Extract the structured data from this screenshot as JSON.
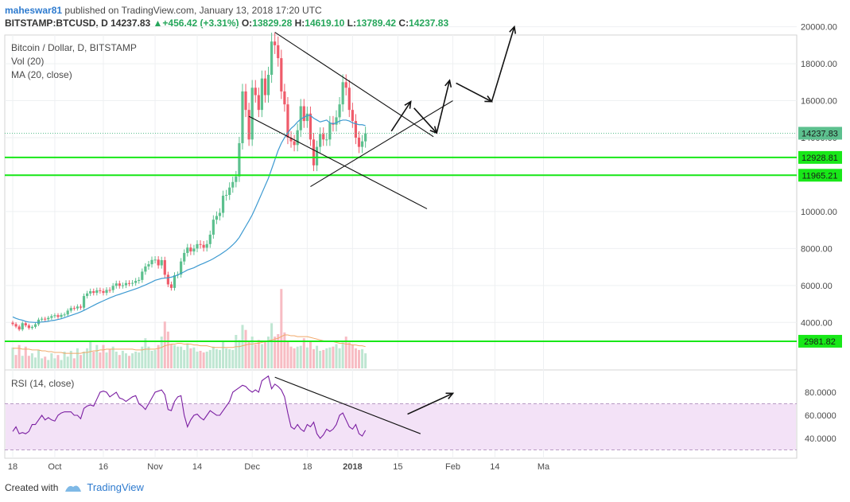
{
  "header": {
    "author": "maheswar81",
    "published_text": "published on TradingView.com, January 13, 2018 17:20 UTC"
  },
  "ticker": {
    "symbol": "BITSTAMP:BTCUSD, D",
    "last": "14237.83",
    "change": "+456.42 (+3.31%)",
    "open_label": "O:",
    "open": "13829.28",
    "high_label": "H:",
    "high": "14619.10",
    "low_label": "L:",
    "low": "13789.42",
    "close_label": "C:",
    "close": "14237.83"
  },
  "legend": {
    "title": "Bitcoin / Dollar, D, BITSTAMP",
    "vol": "Vol (20)",
    "ma": "MA (20, close)",
    "rsi": "RSI (14, close)"
  },
  "footer": {
    "created_with": "Created with",
    "brand": "TradingView"
  },
  "colors": {
    "up": "#5cc08e",
    "down": "#ef5b6a",
    "ma": "#3d9ad1",
    "hline": "#18e818",
    "rsi": "#7b1fa2",
    "rsi_band": "#f3e2f7",
    "text": "#4a4a4a"
  },
  "chart_data": {
    "type": "candlestick",
    "symbol": "BTCUSD",
    "exchange": "BITSTAMP",
    "interval": "D",
    "y_axis": {
      "ticks": [
        "20000.00",
        "18000.00",
        "16000.00",
        "14000.00",
        "12000.00",
        "10000.00",
        "8000.00",
        "6000.00",
        "4000.00"
      ],
      "tick_values": [
        20000,
        18000,
        16000,
        14000,
        12000,
        10000,
        8000,
        6000,
        4000
      ],
      "ylim": [
        3000,
        20300
      ]
    },
    "x_axis": {
      "ticks": [
        "18",
        "Oct",
        "16",
        "Nov",
        "14",
        "Dec",
        "18",
        "2018",
        "15",
        "Feb",
        "14",
        "Ma"
      ],
      "start": "2017-09-18",
      "end": "2018-03-05"
    },
    "price_labels": [
      {
        "value": 14237.83,
        "text": "14237.83"
      },
      {
        "value": 12928.81,
        "text": "12928.81"
      },
      {
        "value": 11965.21,
        "text": "11965.21"
      },
      {
        "value": 2981.82,
        "text": "2981.82"
      }
    ],
    "horizontal_lines": [
      12928.81,
      11965.21,
      2981.82
    ],
    "closes": [
      3910,
      3780,
      3620,
      3960,
      3840,
      3700,
      3760,
      3900,
      4150,
      4200,
      4170,
      4250,
      4340,
      4390,
      4300,
      4410,
      4430,
      4640,
      4780,
      4760,
      4860,
      4800,
      5430,
      5570,
      5690,
      5600,
      5740,
      5700,
      5600,
      5760,
      5750,
      5980,
      6110,
      5980,
      6010,
      6130,
      6110,
      6140,
      6250,
      6300,
      6750,
      7030,
      7150,
      7380,
      7400,
      7090,
      7370,
      6580,
      6060,
      5870,
      6550,
      6590,
      7300,
      7760,
      8050,
      7840,
      8000,
      8240,
      8200,
      8040,
      8240,
      8750,
      9560,
      9760,
      9930,
      10860,
      10900,
      11300,
      11600,
      11900,
      13700,
      16500,
      15500,
      13900,
      16700,
      16300,
      15500,
      17200,
      16300,
      17400,
      19200,
      19000,
      18300,
      16500,
      15800,
      14000,
      13800,
      13600,
      14400,
      15700,
      14900,
      15300,
      13900,
      12500,
      13500,
      14200,
      13900,
      13900,
      14800,
      14700,
      15100,
      15800,
      17000,
      16700,
      15500,
      14900,
      14000,
      13500,
      13800,
      14237
    ],
    "ma20": [
      4300,
      4220,
      4160,
      4120,
      4060,
      4020,
      4010,
      4000,
      4010,
      4020,
      4040,
      4060,
      4100,
      4120,
      4160,
      4200,
      4260,
      4320,
      4380,
      4440,
      4500,
      4570,
      4650,
      4740,
      4830,
      4920,
      5010,
      5090,
      5170,
      5250,
      5330,
      5400,
      5470,
      5520,
      5580,
      5640,
      5700,
      5760,
      5820,
      5880,
      5960,
      6030,
      6110,
      6190,
      6280,
      6330,
      6380,
      6400,
      6420,
      6450,
      6500,
      6570,
      6660,
      6740,
      6840,
      6900,
      6960,
      7050,
      7130,
      7200,
      7280,
      7360,
      7450,
      7560,
      7660,
      7780,
      7900,
      8040,
      8200,
      8380,
      8600,
      8900,
      9200,
      9500,
      9820,
      10200,
      10600,
      11000,
      11400,
      11800,
      12300,
      12800,
      13300,
      13700,
      14000,
      14250,
      14500,
      14650,
      14850,
      15000,
      15100,
      15200,
      15200,
      15050,
      14950,
      14850,
      14900,
      14950,
      14800,
      14750,
      14800,
      14900,
      14950,
      14950,
      14900,
      14800,
      14750,
      14700,
      14700,
      14650
    ],
    "rsi": {
      "name": "RSI (14, close)",
      "ticks": [
        "80.0000",
        "60.0000",
        "40.0000"
      ],
      "tick_values": [
        80,
        60,
        40
      ],
      "band": [
        30,
        70
      ],
      "ylim": [
        25,
        100
      ],
      "values": [
        46,
        50,
        44,
        45,
        44,
        46,
        52,
        52,
        56,
        60,
        56,
        58,
        56,
        55,
        60,
        62,
        63,
        63,
        63,
        60,
        60,
        57,
        66,
        68,
        69,
        68,
        74,
        80,
        81,
        80,
        76,
        78,
        80,
        75,
        74,
        72,
        74,
        76,
        77,
        70,
        68,
        65,
        70,
        75,
        80,
        81,
        82,
        78,
        65,
        64,
        72,
        76,
        77,
        60,
        50,
        56,
        60,
        61,
        58,
        56,
        60,
        64,
        62,
        60,
        60,
        64,
        68,
        72,
        80,
        82,
        84,
        86,
        85,
        82,
        80,
        82,
        80,
        90,
        92,
        94,
        83,
        87,
        85,
        82,
        76,
        62,
        50,
        48,
        52,
        48,
        46,
        52,
        50,
        54,
        44,
        40,
        43,
        48,
        46,
        48,
        52,
        60,
        62,
        56,
        50,
        48,
        52,
        44,
        42,
        47
      ]
    },
    "volume": {
      "name": "Vol (20)",
      "values": [
        2.5,
        1.6,
        2.8,
        1.5,
        2.6,
        1.5,
        1.8,
        1.3,
        2.2,
        1.2,
        1.4,
        1.0,
        1.8,
        1.2,
        1.6,
        1.0,
        2.0,
        1.4,
        2.1,
        1.2,
        2.4,
        1.6,
        2.0,
        2.4,
        3.2,
        2.0,
        2.8,
        1.9,
        2.8,
        1.9,
        2.3,
        2.6,
        2.0,
        1.6,
        2.1,
        1.8,
        1.5,
        1.8,
        2.0,
        1.9,
        2.6,
        3.6,
        2.6,
        2.1,
        2.2,
        2.8,
        3.8,
        5.6,
        4.4,
        2.9,
        2.8,
        2.6,
        2.6,
        2.2,
        3.0,
        2.4,
        2.5,
        2.0,
        2.1,
        1.9,
        2.0,
        2.2,
        2.6,
        2.3,
        2.2,
        3.2,
        2.4,
        2.3,
        2.2,
        4.0,
        3.4,
        5.2,
        4.6,
        3.2,
        3.8,
        2.9,
        3.4,
        2.9,
        3.2,
        3.8,
        5.4,
        3.8,
        4.1,
        9.5,
        4.3,
        3.3,
        2.6,
        2.4,
        2.6,
        2.7,
        3.6,
        2.5,
        3.2,
        2.3,
        2.7,
        2.1,
        2.2,
        2.4,
        2.5,
        2.6,
        2.9,
        2.4,
        3.1,
        3.8,
        3.1,
        2.8,
        2.4,
        2.2,
        2.3,
        1.8
      ],
      "ma": [
        2.4,
        2.4,
        2.4,
        2.3,
        2.3,
        2.3,
        2.2,
        2.2,
        2.2,
        2.1,
        2.1,
        2.0,
        2.0,
        1.9,
        1.9,
        1.9,
        1.8,
        1.8,
        1.8,
        1.8,
        1.8,
        1.8,
        1.9,
        1.9,
        2.0,
        2.1,
        2.1,
        2.2,
        2.2,
        2.3,
        2.3,
        2.3,
        2.3,
        2.3,
        2.3,
        2.3,
        2.3,
        2.3,
        2.2,
        2.2,
        2.2,
        2.3,
        2.3,
        2.3,
        2.3,
        2.4,
        2.5,
        2.7,
        2.8,
        2.9,
        2.9,
        3.0,
        3.0,
        2.9,
        2.9,
        2.9,
        2.8,
        2.8,
        2.7,
        2.7,
        2.7,
        2.6,
        2.5,
        2.5,
        2.5,
        2.5,
        2.5,
        2.5,
        2.5,
        2.6,
        2.6,
        2.7,
        2.8,
        2.9,
        2.9,
        3.0,
        3.0,
        3.1,
        3.2,
        3.3,
        3.4,
        3.5,
        3.6,
        3.8,
        4.0,
        4.0,
        3.9,
        3.9,
        3.8,
        3.8,
        3.8,
        3.8,
        3.7,
        3.6,
        3.5,
        3.4,
        3.3,
        3.2,
        3.2,
        3.2,
        3.1,
        3.0,
        3.0,
        2.9,
        2.9,
        2.8,
        2.8,
        2.7,
        2.7,
        2.6
      ]
    }
  }
}
